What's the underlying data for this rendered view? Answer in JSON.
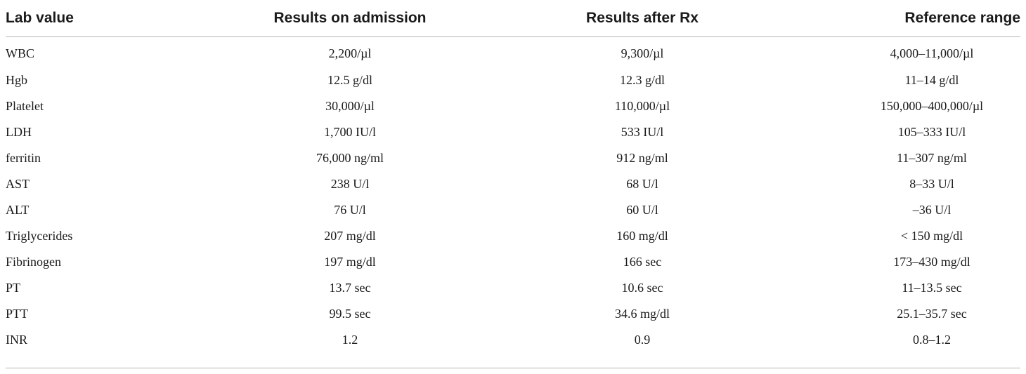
{
  "table": {
    "headers": [
      "Lab value",
      "Results on admission",
      "Results after Rx",
      "Reference range"
    ],
    "rows": [
      [
        "WBC",
        "2,200/µl",
        "9,300/µl",
        "4,000–11,000/µl"
      ],
      [
        "Hgb",
        "12.5 g/dl",
        "12.3 g/dl",
        "11–14 g/dl"
      ],
      [
        "Platelet",
        "30,000/µl",
        "110,000/µl",
        "150,000–400,000/µl"
      ],
      [
        "LDH",
        "1,700 IU/l",
        "533 IU/l",
        "105–333 IU/l"
      ],
      [
        "ferritin",
        "76,000 ng/ml",
        "912 ng/ml",
        "11–307 ng/ml"
      ],
      [
        "AST",
        "238 U/l",
        "68 U/l",
        "8–33 U/l"
      ],
      [
        "ALT",
        "76 U/l",
        "60 U/l",
        "–36 U/l"
      ],
      [
        "Triglycerides",
        "207 mg/dl",
        "160 mg/dl",
        "< 150 mg/dl"
      ],
      [
        "Fibrinogen",
        "197 mg/dl",
        "166 sec",
        "173–430 mg/dl"
      ],
      [
        "PT",
        "13.7 sec",
        "10.6 sec",
        "11–13.5 sec"
      ],
      [
        "PTT",
        "99.5 sec",
        "34.6 mg/dl",
        "25.1–35.7 sec"
      ],
      [
        "INR",
        "1.2",
        "0.9",
        "0.8–1.2"
      ]
    ]
  }
}
